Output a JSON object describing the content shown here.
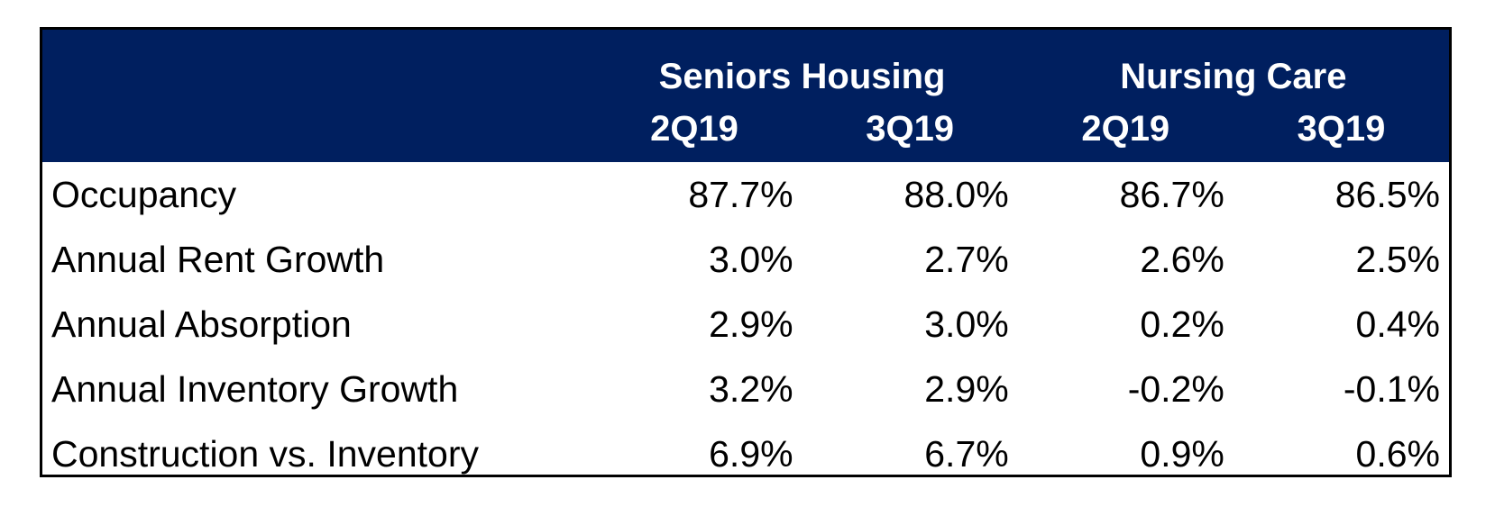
{
  "chart_data": {
    "type": "table",
    "groups": [
      {
        "name": "Seniors Housing",
        "periods": [
          "2Q19",
          "3Q19"
        ]
      },
      {
        "name": "Nursing Care",
        "periods": [
          "2Q19",
          "3Q19"
        ]
      }
    ],
    "rows": [
      {
        "label": "Occupancy",
        "values": [
          "87.7%",
          "88.0%",
          "86.7%",
          "86.5%"
        ]
      },
      {
        "label": "Annual Rent Growth",
        "values": [
          "3.0%",
          "2.7%",
          "2.6%",
          "2.5%"
        ]
      },
      {
        "label": "Annual Absorption",
        "values": [
          "2.9%",
          "3.0%",
          "0.2%",
          "0.4%"
        ]
      },
      {
        "label": "Annual Inventory Growth",
        "values": [
          "3.2%",
          "2.9%",
          "-0.2%",
          "-0.1%"
        ]
      },
      {
        "label": "Construction vs. Inventory",
        "values": [
          "6.9%",
          "6.7%",
          "0.9%",
          "0.6%"
        ]
      }
    ]
  },
  "colors": {
    "header_background": "#001f5f",
    "header_text": "#ffffff",
    "body_text": "#000000",
    "border": "#000000"
  }
}
